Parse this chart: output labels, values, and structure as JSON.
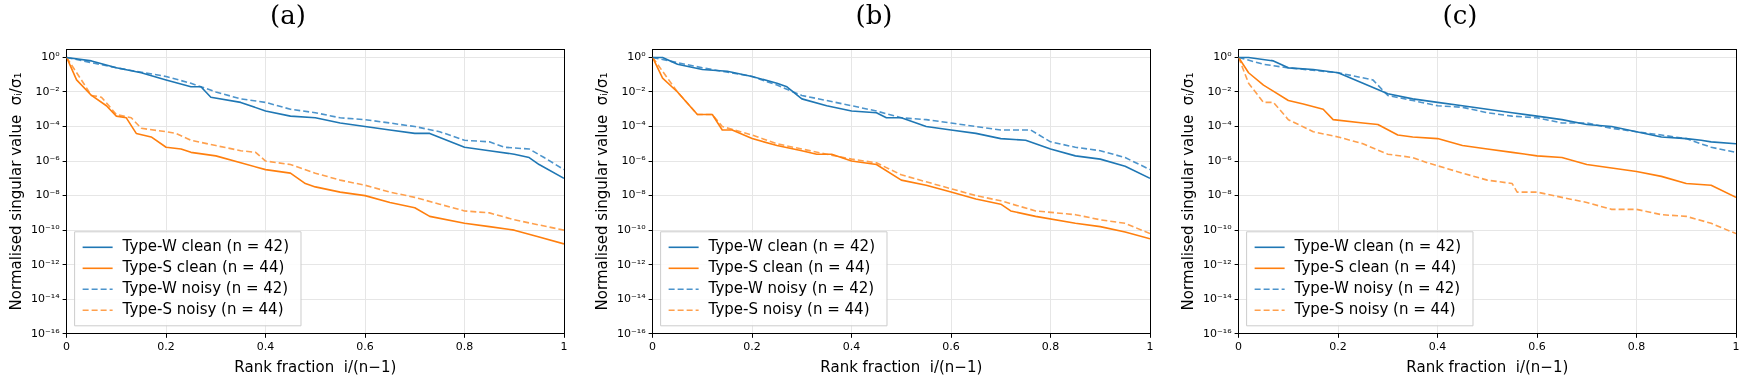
{
  "chart_data": [
    {
      "type": "line",
      "title": "(a)",
      "xlabel": "Rank fraction  i/(n−1)",
      "ylabel": "Normalised singular value  σᵢ/σ₁",
      "xlim": [
        0,
        1
      ],
      "xticks": [
        0,
        0.2,
        0.4,
        0.6,
        0.8,
        1
      ],
      "ylim": [
        1e-16,
        3
      ],
      "log": "y",
      "grid": true,
      "legend": "bottom left",
      "yticks": [
        {
          "value": 1,
          "label": "10⁰"
        },
        {
          "value": 0.01,
          "label": "10⁻²"
        },
        {
          "value": 0.0001,
          "label": "10⁻⁴"
        },
        {
          "value": 1e-06,
          "label": "10⁻⁶"
        },
        {
          "value": 1e-08,
          "label": "10⁻⁸"
        },
        {
          "value": 1e-10,
          "label": "10⁻¹⁰"
        },
        {
          "value": 1e-12,
          "label": "10⁻¹²"
        },
        {
          "value": 1e-14,
          "label": "10⁻¹⁴"
        },
        {
          "value": 1e-16,
          "label": "10⁻¹⁶"
        }
      ],
      "series": [
        {
          "name": "Type-W clean (n = 42)",
          "color": "#1f77b4",
          "line_style": "solid",
          "x": [
            0,
            0.05,
            0.1,
            0.15,
            0.2,
            0.25,
            0.27,
            0.29,
            0.35,
            0.4,
            0.45,
            0.5,
            0.55,
            0.6,
            0.65,
            0.7,
            0.73,
            0.8,
            0.85,
            0.9,
            0.93,
            0.95,
            1.0
          ],
          "values": [
            1,
            0.63,
            0.25,
            0.13,
            0.05,
            0.02,
            0.02,
            0.005,
            0.0025,
            0.00079,
            0.0004,
            0.00032,
            0.00016,
            0.0001,
            6.3e-05,
            4e-05,
            4e-05,
            6.3e-06,
            4e-06,
            2.5e-06,
            1.6e-06,
            6.3e-07,
            1e-07
          ]
        },
        {
          "name": "Type-S clean (n = 44)",
          "color": "#ff7f0e",
          "line_style": "solid",
          "x": [
            0,
            0.02,
            0.05,
            0.08,
            0.1,
            0.12,
            0.14,
            0.17,
            0.2,
            0.23,
            0.25,
            0.3,
            0.35,
            0.4,
            0.45,
            0.48,
            0.5,
            0.55,
            0.6,
            0.65,
            0.7,
            0.73,
            0.8,
            0.85,
            0.9,
            0.95,
            1.0
          ],
          "values": [
            1,
            0.05,
            0.0063,
            0.0016,
            0.0004,
            0.00032,
            4e-05,
            2.5e-05,
            6.3e-06,
            5e-06,
            3.2e-06,
            2e-06,
            7.9e-07,
            3.2e-07,
            2e-07,
            5e-08,
            3.2e-08,
            1.6e-08,
            1e-08,
            4e-09,
            2e-09,
            6.3e-10,
            2.5e-10,
            1.6e-10,
            1e-10,
            4e-11,
            1.6e-11
          ]
        },
        {
          "name": "Type-W noisy (n = 42)",
          "color": "#4c94cc",
          "line_style": "dashed",
          "x": [
            0,
            0.1,
            0.2,
            0.25,
            0.3,
            0.35,
            0.4,
            0.45,
            0.5,
            0.55,
            0.6,
            0.65,
            0.7,
            0.75,
            0.8,
            0.85,
            0.88,
            0.93,
            0.96,
            1.0
          ],
          "values": [
            1,
            0.25,
            0.079,
            0.032,
            0.01,
            0.004,
            0.0025,
            0.001,
            0.00063,
            0.00032,
            0.00025,
            0.00016,
            0.0001,
            5e-05,
            1.6e-05,
            1.3e-05,
            6.3e-06,
            5e-06,
            1.6e-06,
            3.2e-07
          ]
        },
        {
          "name": "Type-S noisy (n = 44)",
          "color": "#ffa04d",
          "line_style": "dashed",
          "x": [
            0,
            0.05,
            0.07,
            0.1,
            0.13,
            0.15,
            0.2,
            0.22,
            0.25,
            0.3,
            0.35,
            0.38,
            0.4,
            0.45,
            0.5,
            0.55,
            0.6,
            0.65,
            0.7,
            0.75,
            0.8,
            0.85,
            0.9,
            0.95,
            1.0
          ],
          "values": [
            1,
            0.0063,
            0.005,
            0.0005,
            0.00032,
            7.9e-05,
            5e-05,
            4e-05,
            1.6e-05,
            7.9e-06,
            4e-06,
            3.2e-06,
            1e-06,
            6.3e-07,
            2e-07,
            7.9e-08,
            4e-08,
            1.6e-08,
            7.9e-09,
            3.2e-09,
            1.3e-09,
            1e-09,
            4e-10,
            2e-10,
            1e-10
          ]
        }
      ]
    },
    {
      "type": "line",
      "title": "(b)",
      "xlabel": "Rank fraction  i/(n−1)",
      "ylabel": "Normalised singular value  σᵢ/σ₁",
      "xlim": [
        0,
        1
      ],
      "xticks": [
        0,
        0.2,
        0.4,
        0.6,
        0.8,
        1
      ],
      "ylim": [
        1e-16,
        3
      ],
      "log": "y",
      "grid": true,
      "legend": "bottom left",
      "yticks": [
        {
          "value": 1,
          "label": "10⁰"
        },
        {
          "value": 0.01,
          "label": "10⁻²"
        },
        {
          "value": 0.0001,
          "label": "10⁻⁴"
        },
        {
          "value": 1e-06,
          "label": "10⁻⁶"
        },
        {
          "value": 1e-08,
          "label": "10⁻⁸"
        },
        {
          "value": 1e-10,
          "label": "10⁻¹⁰"
        },
        {
          "value": 1e-12,
          "label": "10⁻¹²"
        },
        {
          "value": 1e-14,
          "label": "10⁻¹⁴"
        },
        {
          "value": 1e-16,
          "label": "10⁻¹⁶"
        }
      ],
      "series": [
        {
          "name": "Type-W clean (n = 42)",
          "color": "#1f77b4",
          "line_style": "solid",
          "x": [
            0,
            0.02,
            0.05,
            0.1,
            0.15,
            0.2,
            0.25,
            0.27,
            0.3,
            0.35,
            0.4,
            0.45,
            0.47,
            0.5,
            0.55,
            0.6,
            0.65,
            0.7,
            0.75,
            0.8,
            0.85,
            0.9,
            0.95,
            1.0
          ],
          "values": [
            1,
            1,
            0.4,
            0.2,
            0.16,
            0.079,
            0.032,
            0.02,
            0.004,
            0.0016,
            0.00079,
            0.00063,
            0.00032,
            0.00032,
            0.0001,
            6.3e-05,
            4e-05,
            2e-05,
            1.6e-05,
            5e-06,
            2e-06,
            1.3e-06,
            5e-07,
            1e-07
          ]
        },
        {
          "name": "Type-S clean (n = 44)",
          "color": "#ff7f0e",
          "line_style": "solid",
          "x": [
            0,
            0.02,
            0.05,
            0.09,
            0.12,
            0.14,
            0.16,
            0.2,
            0.25,
            0.3,
            0.33,
            0.36,
            0.4,
            0.45,
            0.5,
            0.55,
            0.6,
            0.65,
            0.7,
            0.72,
            0.77,
            0.85,
            0.9,
            0.95,
            1.0
          ],
          "values": [
            1,
            0.063,
            0.01,
            0.0005,
            0.0005,
            6.3e-05,
            6.3e-05,
            2e-05,
            7.9e-06,
            4e-06,
            2.5e-06,
            2.5e-06,
            1e-06,
            6.3e-07,
            7.9e-08,
            4e-08,
            1.6e-08,
            6.3e-09,
            3.2e-09,
            1.3e-09,
            6.3e-10,
            2.5e-10,
            1.6e-10,
            7.9e-11,
            3.2e-11
          ]
        },
        {
          "name": "Type-W noisy (n = 42)",
          "color": "#4c94cc",
          "line_style": "dashed",
          "x": [
            0,
            0.1,
            0.2,
            0.25,
            0.3,
            0.35,
            0.4,
            0.45,
            0.5,
            0.55,
            0.6,
            0.65,
            0.7,
            0.76,
            0.8,
            0.85,
            0.9,
            0.95,
            1.0
          ],
          "values": [
            1,
            0.25,
            0.079,
            0.025,
            0.0063,
            0.0032,
            0.0016,
            0.00079,
            0.00032,
            0.00025,
            0.00016,
            0.0001,
            6.3e-05,
            6.3e-05,
            1.3e-05,
            6.3e-06,
            4e-06,
            1.6e-06,
            3.2e-07
          ]
        },
        {
          "name": "Type-S noisy (n = 44)",
          "color": "#ffa04d",
          "line_style": "dashed",
          "x": [
            0,
            0.05,
            0.09,
            0.12,
            0.14,
            0.2,
            0.25,
            0.3,
            0.35,
            0.4,
            0.45,
            0.5,
            0.55,
            0.6,
            0.65,
            0.7,
            0.77,
            0.85,
            0.9,
            0.95,
            1.0
          ],
          "values": [
            1,
            0.01,
            0.0005,
            0.0005,
            0.0001,
            3.2e-05,
            1e-05,
            5e-06,
            2.5e-06,
            1.3e-06,
            7.9e-07,
            1.6e-07,
            6.3e-08,
            2.5e-08,
            1e-08,
            5e-09,
            1.3e-09,
            7.9e-10,
            4e-10,
            2.5e-10,
            6.3e-11
          ]
        }
      ]
    },
    {
      "type": "line",
      "title": "(c)",
      "xlabel": "Rank fraction  i/(n−1)",
      "ylabel": "Normalised singular value  σᵢ/σ₁",
      "xlim": [
        0,
        1
      ],
      "xticks": [
        0,
        0.2,
        0.4,
        0.6,
        0.8,
        1
      ],
      "ylim": [
        1e-16,
        3
      ],
      "log": "y",
      "grid": true,
      "legend": "bottom left",
      "yticks": [
        {
          "value": 1,
          "label": "10⁰"
        },
        {
          "value": 0.01,
          "label": "10⁻²"
        },
        {
          "value": 0.0001,
          "label": "10⁻⁴"
        },
        {
          "value": 1e-06,
          "label": "10⁻⁶"
        },
        {
          "value": 1e-08,
          "label": "10⁻⁸"
        },
        {
          "value": 1e-10,
          "label": "10⁻¹⁰"
        },
        {
          "value": 1e-12,
          "label": "10⁻¹²"
        },
        {
          "value": 1e-14,
          "label": "10⁻¹⁴"
        },
        {
          "value": 1e-16,
          "label": "10⁻¹⁶"
        }
      ],
      "series": [
        {
          "name": "Type-W clean (n = 42)",
          "color": "#1f77b4",
          "line_style": "solid",
          "x": [
            0,
            0.02,
            0.07,
            0.1,
            0.15,
            0.2,
            0.25,
            0.3,
            0.35,
            0.4,
            0.45,
            0.5,
            0.55,
            0.6,
            0.65,
            0.7,
            0.75,
            0.8,
            0.85,
            0.9,
            0.93,
            0.95,
            1.0
          ],
          "values": [
            1,
            1,
            0.63,
            0.25,
            0.2,
            0.13,
            0.032,
            0.0079,
            0.004,
            0.0025,
            0.0016,
            0.001,
            0.00063,
            0.0004,
            0.00025,
            0.00013,
            0.0001,
            5e-05,
            2.5e-05,
            2e-05,
            1.6e-05,
            1.3e-05,
            1e-05
          ]
        },
        {
          "name": "Type-S clean (n = 44)",
          "color": "#ff7f0e",
          "line_style": "solid",
          "x": [
            0,
            0.02,
            0.05,
            0.1,
            0.13,
            0.17,
            0.19,
            0.25,
            0.28,
            0.32,
            0.35,
            0.4,
            0.45,
            0.5,
            0.55,
            0.6,
            0.65,
            0.7,
            0.75,
            0.8,
            0.85,
            0.9,
            0.95,
            1.0
          ],
          "values": [
            1,
            0.13,
            0.025,
            0.0032,
            0.002,
            0.001,
            0.00025,
            0.00016,
            0.00013,
            3.2e-05,
            2.5e-05,
            2e-05,
            7.9e-06,
            5e-06,
            3.2e-06,
            2e-06,
            1.6e-06,
            6.3e-07,
            4e-07,
            2.5e-07,
            1.3e-07,
            5e-08,
            4e-08,
            7.9e-09
          ]
        },
        {
          "name": "Type-W noisy (n = 42)",
          "color": "#4c94cc",
          "line_style": "dashed",
          "x": [
            0,
            0.05,
            0.1,
            0.2,
            0.27,
            0.3,
            0.35,
            0.4,
            0.45,
            0.5,
            0.55,
            0.6,
            0.65,
            0.7,
            0.75,
            0.8,
            0.85,
            0.9,
            0.95,
            1.0
          ],
          "values": [
            1,
            0.4,
            0.25,
            0.13,
            0.05,
            0.0063,
            0.0032,
            0.0016,
            0.0013,
            0.00063,
            0.0004,
            0.00032,
            0.00016,
            0.00016,
            7.9e-05,
            5e-05,
            3.2e-05,
            2e-05,
            6.3e-06,
            3.2e-06
          ]
        },
        {
          "name": "Type-S noisy (n = 44)",
          "color": "#ffa04d",
          "line_style": "dashed",
          "x": [
            0,
            0.02,
            0.05,
            0.07,
            0.1,
            0.15,
            0.2,
            0.25,
            0.3,
            0.35,
            0.38,
            0.45,
            0.5,
            0.55,
            0.56,
            0.6,
            0.65,
            0.7,
            0.75,
            0.8,
            0.85,
            0.9,
            0.95,
            1.0
          ],
          "values": [
            1,
            0.032,
            0.0025,
            0.0025,
            0.00025,
            5e-05,
            2.5e-05,
            1e-05,
            2.5e-06,
            1.6e-06,
            7.9e-07,
            2e-07,
            7.9e-08,
            5e-08,
            1.6e-08,
            1.6e-08,
            7.9e-09,
            4e-09,
            1.6e-09,
            1.6e-09,
            7.9e-10,
            6.3e-10,
            2.5e-10,
            6.3e-11
          ]
        }
      ]
    }
  ]
}
